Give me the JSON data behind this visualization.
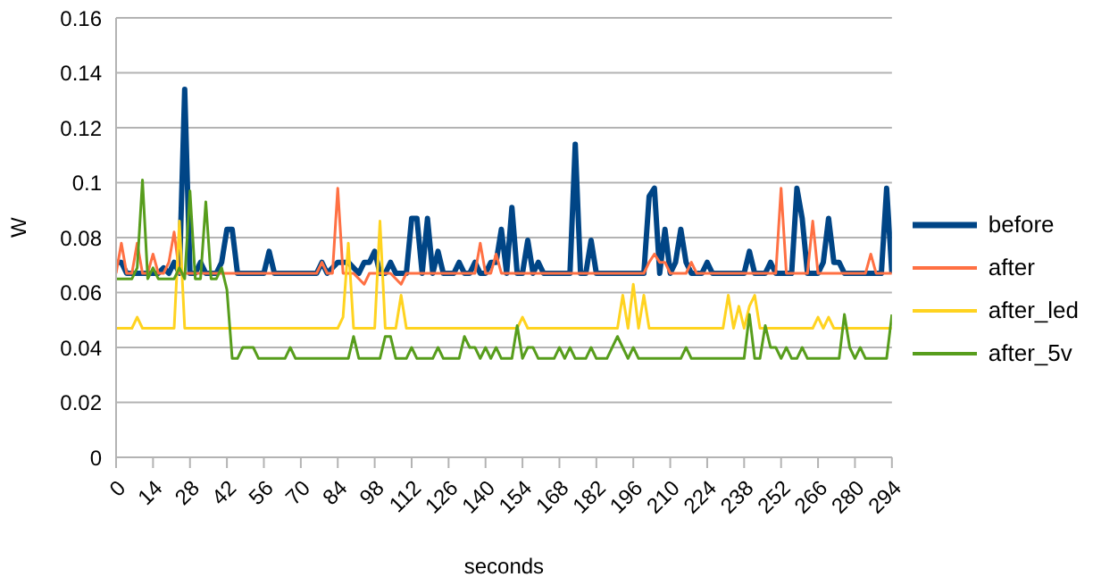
{
  "chart_data": {
    "type": "line",
    "xlabel": "seconds",
    "ylabel": "W",
    "xlim": [
      0,
      294
    ],
    "xticks": [
      0,
      14,
      28,
      42,
      56,
      70,
      84,
      98,
      112,
      126,
      140,
      154,
      168,
      182,
      196,
      210,
      224,
      238,
      252,
      266,
      280,
      294
    ],
    "ylim": [
      0,
      0.16
    ],
    "yticks": [
      0,
      0.02,
      0.04,
      0.06,
      0.08,
      0.1,
      0.12,
      0.14,
      0.16
    ],
    "grid": "y",
    "legend": "right",
    "marker": "none",
    "line_style": "solid",
    "series": [
      {
        "name": "before",
        "color": "#004586",
        "x": [
          0,
          2,
          4,
          16,
          18,
          20,
          22,
          24,
          26,
          28,
          30,
          32,
          34,
          38,
          40,
          42,
          44,
          46,
          56,
          58,
          60,
          76,
          78,
          80,
          84,
          88,
          90,
          92,
          94,
          96,
          98,
          100,
          102,
          104,
          106,
          110,
          112,
          114,
          116,
          118,
          120,
          122,
          124,
          128,
          130,
          132,
          134,
          136,
          138,
          140,
          142,
          144,
          146,
          148,
          150,
          152,
          154,
          156,
          158,
          160,
          162,
          172,
          174,
          176,
          178,
          180,
          182,
          200,
          202,
          204,
          206,
          208,
          210,
          212,
          214,
          216,
          218,
          222,
          224,
          226,
          238,
          240,
          242,
          246,
          248,
          250,
          256,
          258,
          260,
          262,
          266,
          268,
          270,
          272,
          274,
          276,
          290,
          292,
          294
        ],
        "values": [
          0.071,
          0.071,
          0.067,
          0.067,
          0.069,
          0.067,
          0.071,
          0.067,
          0.134,
          0.067,
          0.067,
          0.071,
          0.067,
          0.067,
          0.071,
          0.083,
          0.083,
          0.067,
          0.067,
          0.075,
          0.067,
          0.067,
          0.071,
          0.067,
          0.071,
          0.071,
          0.069,
          0.067,
          0.071,
          0.071,
          0.075,
          0.067,
          0.067,
          0.071,
          0.067,
          0.067,
          0.087,
          0.087,
          0.067,
          0.087,
          0.067,
          0.075,
          0.067,
          0.067,
          0.071,
          0.067,
          0.067,
          0.071,
          0.067,
          0.067,
          0.071,
          0.071,
          0.083,
          0.067,
          0.091,
          0.067,
          0.067,
          0.079,
          0.067,
          0.071,
          0.067,
          0.067,
          0.114,
          0.067,
          0.067,
          0.079,
          0.067,
          0.067,
          0.095,
          0.098,
          0.067,
          0.083,
          0.067,
          0.071,
          0.083,
          0.071,
          0.067,
          0.067,
          0.071,
          0.067,
          0.067,
          0.075,
          0.067,
          0.067,
          0.071,
          0.067,
          0.067,
          0.098,
          0.087,
          0.067,
          0.067,
          0.071,
          0.087,
          0.071,
          0.071,
          0.067,
          0.067,
          0.098,
          0.067
        ]
      },
      {
        "name": "after",
        "color": "#ff7043",
        "x": [
          0,
          2,
          4,
          6,
          8,
          10,
          12,
          14,
          16,
          18,
          20,
          22,
          24,
          76,
          78,
          80,
          82,
          84,
          86,
          90,
          94,
          96,
          104,
          108,
          110,
          136,
          138,
          140,
          142,
          144,
          146,
          200,
          202,
          204,
          206,
          208,
          210,
          216,
          218,
          220,
          250,
          252,
          254,
          262,
          264,
          266,
          284,
          286,
          288,
          294
        ],
        "values": [
          0.067,
          0.078,
          0.067,
          0.067,
          0.078,
          0.067,
          0.067,
          0.074,
          0.067,
          0.067,
          0.071,
          0.082,
          0.067,
          0.067,
          0.071,
          0.067,
          0.067,
          0.098,
          0.067,
          0.067,
          0.063,
          0.067,
          0.067,
          0.063,
          0.067,
          0.067,
          0.078,
          0.067,
          0.067,
          0.074,
          0.067,
          0.067,
          0.071,
          0.074,
          0.071,
          0.071,
          0.067,
          0.067,
          0.071,
          0.067,
          0.067,
          0.098,
          0.067,
          0.067,
          0.086,
          0.067,
          0.067,
          0.074,
          0.067,
          0.067
        ]
      },
      {
        "name": "after_led",
        "color": "#ffd320",
        "x": [
          0,
          6,
          8,
          10,
          22,
          24,
          26,
          84,
          86,
          88,
          90,
          98,
          100,
          102,
          106,
          108,
          110,
          152,
          154,
          156,
          190,
          192,
          194,
          196,
          198,
          200,
          202,
          230,
          232,
          234,
          236,
          238,
          240,
          242,
          244,
          264,
          266,
          268,
          270,
          272,
          294
        ],
        "values": [
          0.047,
          0.047,
          0.051,
          0.047,
          0.047,
          0.086,
          0.047,
          0.047,
          0.051,
          0.078,
          0.047,
          0.047,
          0.086,
          0.047,
          0.047,
          0.059,
          0.047,
          0.047,
          0.051,
          0.047,
          0.047,
          0.059,
          0.047,
          0.063,
          0.047,
          0.059,
          0.047,
          0.047,
          0.059,
          0.047,
          0.055,
          0.047,
          0.055,
          0.059,
          0.047,
          0.047,
          0.051,
          0.047,
          0.051,
          0.047,
          0.047
        ]
      },
      {
        "name": "after_5v",
        "color": "#579d1c",
        "x": [
          0,
          6,
          8,
          10,
          12,
          14,
          16,
          22,
          24,
          26,
          28,
          30,
          32,
          34,
          36,
          38,
          40,
          42,
          44,
          46,
          48,
          52,
          54,
          64,
          66,
          68,
          88,
          90,
          92,
          100,
          102,
          104,
          106,
          110,
          112,
          114,
          120,
          122,
          124,
          130,
          132,
          134,
          136,
          138,
          140,
          142,
          144,
          146,
          150,
          152,
          154,
          156,
          158,
          160,
          166,
          168,
          170,
          172,
          174,
          178,
          180,
          182,
          186,
          190,
          192,
          194,
          196,
          198,
          214,
          216,
          218,
          238,
          240,
          242,
          244,
          246,
          248,
          250,
          252,
          254,
          256,
          258,
          260,
          262,
          274,
          276,
          278,
          280,
          282,
          284,
          292,
          294
        ],
        "values": [
          0.065,
          0.065,
          0.069,
          0.101,
          0.065,
          0.069,
          0.065,
          0.065,
          0.069,
          0.065,
          0.097,
          0.065,
          0.065,
          0.093,
          0.065,
          0.065,
          0.069,
          0.061,
          0.036,
          0.036,
          0.04,
          0.04,
          0.036,
          0.036,
          0.04,
          0.036,
          0.036,
          0.044,
          0.036,
          0.036,
          0.044,
          0.044,
          0.036,
          0.036,
          0.04,
          0.036,
          0.036,
          0.04,
          0.036,
          0.036,
          0.044,
          0.04,
          0.04,
          0.036,
          0.04,
          0.036,
          0.04,
          0.036,
          0.036,
          0.048,
          0.036,
          0.04,
          0.04,
          0.036,
          0.036,
          0.04,
          0.036,
          0.04,
          0.036,
          0.036,
          0.04,
          0.036,
          0.036,
          0.044,
          0.04,
          0.036,
          0.04,
          0.036,
          0.036,
          0.04,
          0.036,
          0.036,
          0.052,
          0.036,
          0.036,
          0.048,
          0.04,
          0.04,
          0.036,
          0.04,
          0.036,
          0.036,
          0.04,
          0.036,
          0.036,
          0.052,
          0.04,
          0.036,
          0.04,
          0.036,
          0.036,
          0.052
        ]
      }
    ]
  }
}
